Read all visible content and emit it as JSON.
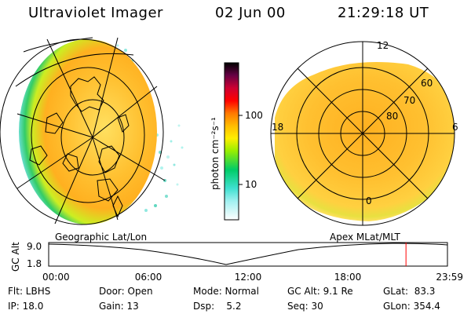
{
  "header": {
    "title": "Ultraviolet Imager",
    "date": "02 Jun 00",
    "time": "21:29:18 UT"
  },
  "colorbar": {
    "unit_label": "photon cm⁻²s⁻¹",
    "ticks": [
      {
        "label": "100",
        "value": 100
      },
      {
        "label": "10",
        "value": 10
      }
    ],
    "colors": [
      "#ffffff",
      "#40e0d0",
      "#00cc66",
      "#ccff00",
      "#ffcc00",
      "#ff8800",
      "#ff0000",
      "#990033",
      "#000000"
    ]
  },
  "geo_panel": {
    "label": "Geographic Lat/Lon"
  },
  "apex_panel": {
    "label": "Apex MLat/MLT",
    "mlt_labels": {
      "top": "12",
      "left": "18",
      "right": "6",
      "bottom": "0"
    },
    "lat_labels": [
      "60",
      "70",
      "80"
    ]
  },
  "altitude_plot": {
    "ylabel": "GC Alt",
    "ytop": "9.0",
    "ybottom": "1.8",
    "x_ticks": [
      "00:00",
      "06:00",
      "12:00",
      "18:00",
      "23:59"
    ],
    "current_time_fraction": 0.896
  },
  "footer": {
    "flt": "Flt: LBHS",
    "ip": "IP: 18.0",
    "door": "Door: Open",
    "gain": "Gain: 13",
    "mode": "Mode: Normal",
    "dsp": "Dsp:    5.2",
    "gcalt": "GC Alt: 9.1 Re",
    "seq": "Seq: 30",
    "glat": "GLat:  83.3",
    "glon": "GLon: 354.4"
  }
}
